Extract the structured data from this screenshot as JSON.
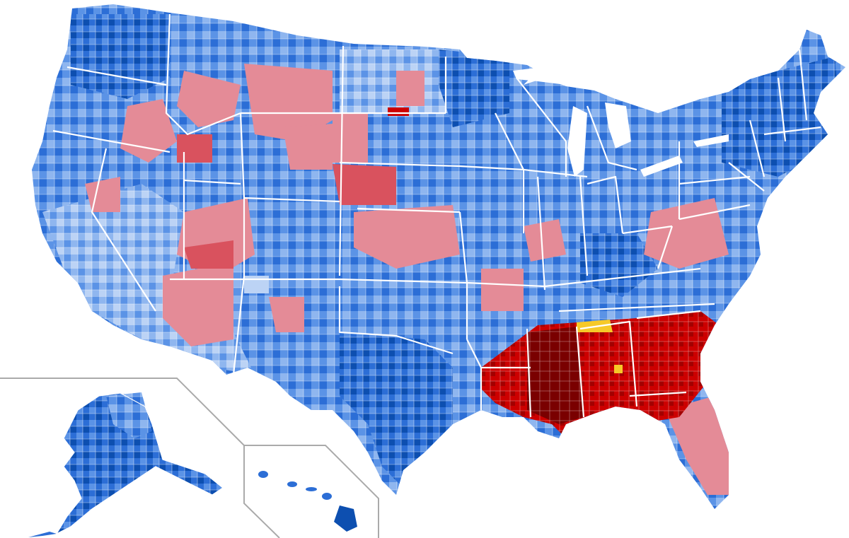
{
  "map": {
    "type": "us-county-choropleth",
    "legend": null,
    "insets": [
      "alaska",
      "hawaii"
    ],
    "colors": {
      "background": "#ffffff",
      "state_border": "#ffffff",
      "inset_border": "#aaaaaa",
      "dem_lightest": "#bcd3f5",
      "dem_light": "#8fb6ef",
      "dem_mid": "#5b93e6",
      "dem_strong": "#2c6ed6",
      "dem_darkest": "#0d4fb0",
      "rep_light": "#e48b97",
      "rep_mid": "#d9525e",
      "rep_strong": "#cc0000",
      "rep_darkest": "#7a0000",
      "other": "#f6c928"
    }
  }
}
